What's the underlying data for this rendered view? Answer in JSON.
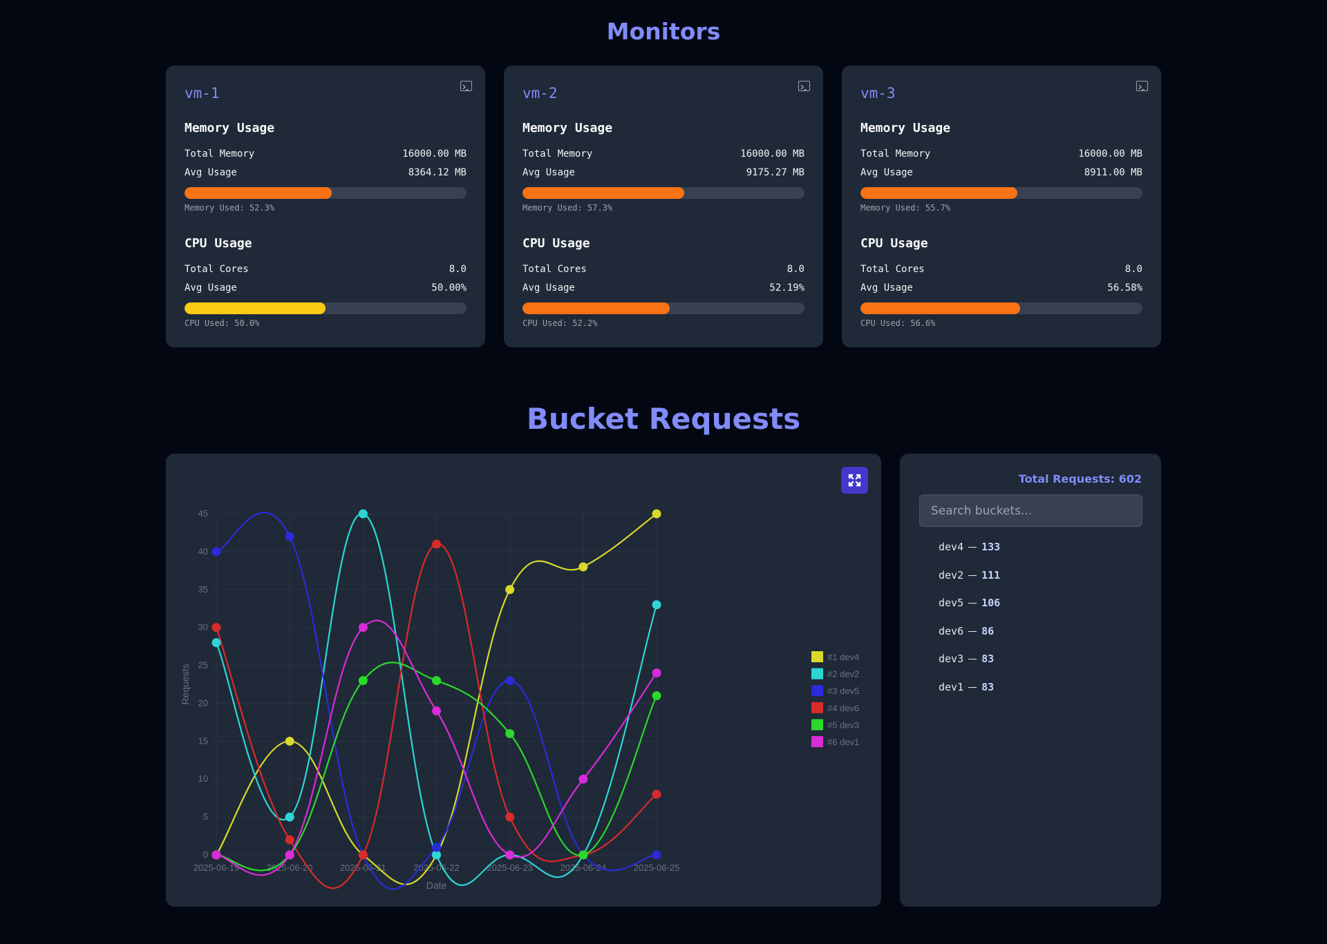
{
  "monitors": {
    "title": "Monitors",
    "vms": [
      {
        "name": "vm-1",
        "memory": {
          "heading": "Memory Usage",
          "rows": [
            [
              "Total Memory",
              "16000.00 MB"
            ],
            [
              "Avg Usage",
              "8364.12 MB"
            ]
          ],
          "used_label": "Memory Used: 52.3%",
          "used": 52.3,
          "color": "#f97316"
        },
        "cpu": {
          "heading": "CPU Usage",
          "rows": [
            [
              "Total Cores",
              "8.0"
            ],
            [
              "Avg Usage",
              "50.00%"
            ]
          ],
          "used_label": "CPU Used: 50.0%",
          "used": 50.0,
          "color": "#facc15"
        }
      },
      {
        "name": "vm-2",
        "memory": {
          "heading": "Memory Usage",
          "rows": [
            [
              "Total Memory",
              "16000.00 MB"
            ],
            [
              "Avg Usage",
              "9175.27 MB"
            ]
          ],
          "used_label": "Memory Used: 57.3%",
          "used": 57.3,
          "color": "#f97316"
        },
        "cpu": {
          "heading": "CPU Usage",
          "rows": [
            [
              "Total Cores",
              "8.0"
            ],
            [
              "Avg Usage",
              "52.19%"
            ]
          ],
          "used_label": "CPU Used: 52.2%",
          "used": 52.2,
          "color": "#f97316"
        }
      },
      {
        "name": "vm-3",
        "memory": {
          "heading": "Memory Usage",
          "rows": [
            [
              "Total Memory",
              "16000.00 MB"
            ],
            [
              "Avg Usage",
              "8911.00 MB"
            ]
          ],
          "used_label": "Memory Used: 55.7%",
          "used": 55.7,
          "color": "#f97316"
        },
        "cpu": {
          "heading": "CPU Usage",
          "rows": [
            [
              "Total Cores",
              "8.0"
            ],
            [
              "Avg Usage",
              "56.58%"
            ]
          ],
          "used_label": "CPU Used: 56.6%",
          "used": 56.6,
          "color": "#f97316"
        }
      }
    ]
  },
  "buckets": {
    "title": "Bucket Requests",
    "total_label": "Total Requests: 602",
    "search_placeholder": "Search buckets...",
    "list": [
      {
        "name": "dev4",
        "count": 133
      },
      {
        "name": "dev2",
        "count": 111
      },
      {
        "name": "dev5",
        "count": 106
      },
      {
        "name": "dev6",
        "count": 86
      },
      {
        "name": "dev3",
        "count": 83
      },
      {
        "name": "dev1",
        "count": 83
      }
    ]
  },
  "chart_data": {
    "type": "line",
    "x_label": "Date",
    "y_label": "Requests",
    "categories": [
      "2025-06-19",
      "2025-06-20",
      "2025-06-21",
      "2025-06-22",
      "2025-06-23",
      "2025-06-24",
      "2025-06-25"
    ],
    "series": [
      {
        "name": "#1 dev4",
        "color": "#d9d92b",
        "values": [
          0,
          15,
          0,
          0,
          35,
          38,
          45
        ]
      },
      {
        "name": "#2 dev2",
        "color": "#2ed6d6",
        "values": [
          28,
          5,
          45,
          0,
          0,
          0,
          33
        ]
      },
      {
        "name": "#3 dev5",
        "color": "#2b2bd9",
        "values": [
          40,
          42,
          0,
          1,
          23,
          0,
          0
        ]
      },
      {
        "name": "#4 dev6",
        "color": "#d92b2b",
        "values": [
          30,
          2,
          0,
          41,
          5,
          0,
          8
        ]
      },
      {
        "name": "#5 dev3",
        "color": "#2bd92b",
        "values": [
          0,
          0,
          23,
          23,
          16,
          0,
          21
        ]
      },
      {
        "name": "#6 dev1",
        "color": "#d92bd9",
        "values": [
          0,
          0,
          30,
          19,
          0,
          10,
          24
        ]
      }
    ],
    "ylim": [
      0,
      45
    ],
    "yticks": [
      0,
      5,
      10,
      15,
      20,
      25,
      30,
      35,
      40,
      45
    ],
    "grid": true,
    "legend": "right"
  }
}
